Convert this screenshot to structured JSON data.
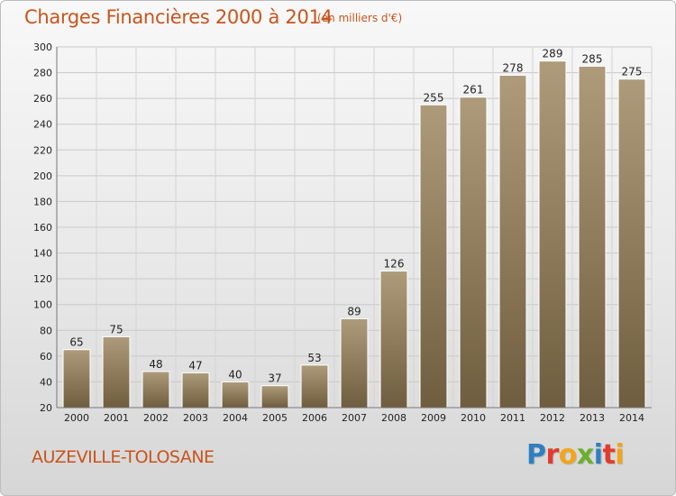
{
  "header": {
    "title": "Charges Financières 2000 à 2014",
    "subtitle": "(en milliers d'€)"
  },
  "footer": {
    "commune": "AUZEVILLE-TOLOSANE",
    "logo_letters": [
      "P",
      "r",
      "o",
      "x",
      "i",
      "t",
      "i"
    ],
    "logo_colors": [
      "#2f7fc1",
      "#e23b2e",
      "#f2a41c",
      "#6ab02e",
      "#2f7fc1",
      "#e23b2e",
      "#f2a41c"
    ]
  },
  "colors": {
    "bar_top": "#ad9b7a",
    "bar_bottom": "#6f5d3f",
    "title": "#c8541c"
  },
  "chart_data": {
    "type": "bar",
    "title": "Charges Financières 2000 à 2014",
    "subtitle": "(en milliers d'€)",
    "categories": [
      "2000",
      "2001",
      "2002",
      "2003",
      "2004",
      "2005",
      "2006",
      "2007",
      "2008",
      "2009",
      "2010",
      "2011",
      "2012",
      "2013",
      "2014"
    ],
    "values": [
      65,
      75,
      48,
      47,
      40,
      37,
      53,
      89,
      126,
      255,
      261,
      278,
      289,
      285,
      275
    ],
    "ylim": [
      20,
      300
    ],
    "yticks": [
      20,
      40,
      60,
      80,
      100,
      120,
      140,
      160,
      180,
      200,
      220,
      240,
      260,
      280,
      300
    ],
    "grid": true,
    "xlabel": "",
    "ylabel": ""
  }
}
